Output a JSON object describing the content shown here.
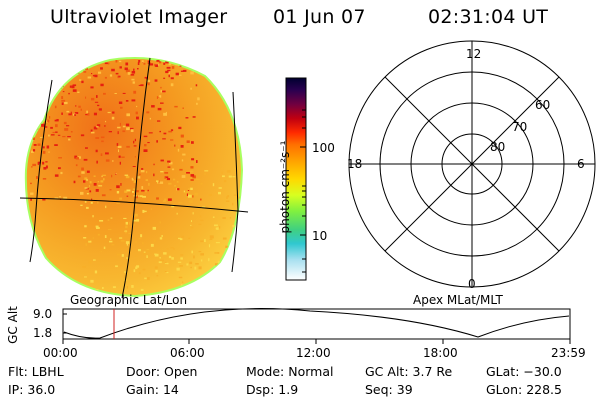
{
  "header": {
    "instrument": "Ultraviolet Imager",
    "date": "01 Jun 07",
    "time": "02:31:04 UT"
  },
  "colorbar": {
    "unit_label": "photon cm⁻²s⁻¹",
    "ticks": [
      {
        "value": 100,
        "label": "100"
      },
      {
        "value": 10,
        "label": "10"
      }
    ],
    "scale": "log",
    "colors": [
      "#000040",
      "#2a0060",
      "#8a0040",
      "#c00000",
      "#ff3000",
      "#ff8000",
      "#ffb800",
      "#ffe000",
      "#e0ff20",
      "#80ff40",
      "#30e0c0",
      "#40c8e8",
      "#b0e8f0",
      "#ffffff"
    ]
  },
  "image_panel": {
    "label": "Geographic Lat/Lon",
    "disk_colors": {
      "base": "#f4a020",
      "bright": "#e62010",
      "edge": "#a8ff60"
    }
  },
  "polar_panel": {
    "label": "Apex MLat/MLT",
    "mlt_labels": [
      "12",
      "18",
      "6",
      "0"
    ],
    "lat_labels": [
      "60",
      "70",
      "80"
    ]
  },
  "altitude_panel": {
    "ylabel": "GC Alt",
    "y_ticks": [
      "9.0",
      "1.8"
    ],
    "x_ticks": [
      "00:00",
      "06:00",
      "12:00",
      "18:00",
      "23:59"
    ],
    "marker_color": "#d02020"
  },
  "info": {
    "row1": [
      {
        "key": "Flt:",
        "value": "LBHL"
      },
      {
        "key": "Door:",
        "value": "Open"
      },
      {
        "key": "Mode:",
        "value": "Normal"
      },
      {
        "key": "GC Alt:",
        "value": "3.7 Re"
      },
      {
        "key": "GLat:",
        "value": "−30.0"
      }
    ],
    "row2": [
      {
        "key": "IP:",
        "value": "36.0"
      },
      {
        "key": "Gain:",
        "value": "14"
      },
      {
        "key": "Dsp:",
        "value": "1.9"
      },
      {
        "key": "Seq:",
        "value": "39"
      },
      {
        "key": "GLon:",
        "value": "228.5"
      }
    ]
  }
}
